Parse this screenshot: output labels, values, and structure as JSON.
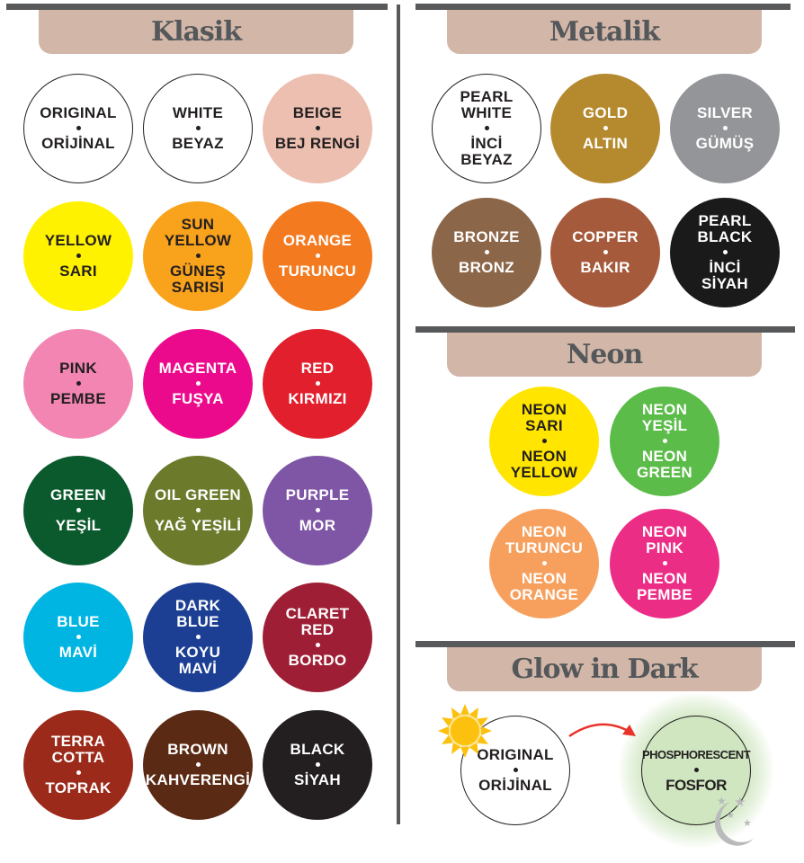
{
  "sections": {
    "klasik": {
      "title": "Klasik"
    },
    "metalik": {
      "title": "Metalik"
    },
    "neon": {
      "title": "Neon"
    },
    "glow": {
      "title": "Glow in Dark"
    }
  },
  "klasik_colors": [
    {
      "top": [
        "ORIGINAL"
      ],
      "bottom": [
        "ORİJİNAL"
      ],
      "fill": "#ffffff",
      "text": "#231f20",
      "outlined": true
    },
    {
      "top": [
        "WHITE"
      ],
      "bottom": [
        "BEYAZ"
      ],
      "fill": "#ffffff",
      "text": "#231f20",
      "outlined": true
    },
    {
      "top": [
        "BEIGE"
      ],
      "bottom": [
        "BEJ RENGİ"
      ],
      "fill": "#ecbfb0",
      "text": "#231f20"
    },
    {
      "top": [
        "YELLOW"
      ],
      "bottom": [
        "SARI"
      ],
      "fill": "#fff200",
      "text": "#231f20"
    },
    {
      "top": [
        "SUN",
        "YELLOW"
      ],
      "bottom": [
        "GÜNEŞ",
        "SARISI"
      ],
      "fill": "#f9a21b",
      "text": "#231f20"
    },
    {
      "top": [
        "ORANGE"
      ],
      "bottom": [
        "TURUNCU"
      ],
      "fill": "#f37a1f",
      "text": "#ffffff"
    },
    {
      "top": [
        "PINK"
      ],
      "bottom": [
        "PEMBE"
      ],
      "fill": "#f285b2",
      "text": "#231f20"
    },
    {
      "top": [
        "MAGENTA"
      ],
      "bottom": [
        "FUŞYA"
      ],
      "fill": "#ec0a8c",
      "text": "#ffffff"
    },
    {
      "top": [
        "RED"
      ],
      "bottom": [
        "KIRMIZI"
      ],
      "fill": "#e21f2d",
      "text": "#ffffff"
    },
    {
      "top": [
        "GREEN"
      ],
      "bottom": [
        "YEŞİL"
      ],
      "fill": "#0b5a2d",
      "text": "#ffffff"
    },
    {
      "top": [
        "OIL GREEN"
      ],
      "bottom": [
        "YAĞ YEŞİLİ"
      ],
      "fill": "#6b7a2b",
      "text": "#ffffff"
    },
    {
      "top": [
        "PURPLE"
      ],
      "bottom": [
        "MOR"
      ],
      "fill": "#7f56a5",
      "text": "#ffffff"
    },
    {
      "top": [
        "BLUE"
      ],
      "bottom": [
        "MAVİ"
      ],
      "fill": "#00b5e2",
      "text": "#ffffff"
    },
    {
      "top": [
        "DARK",
        "BLUE"
      ],
      "bottom": [
        "KOYU",
        "MAVİ"
      ],
      "fill": "#1c3f94",
      "text": "#ffffff"
    },
    {
      "top": [
        "CLARET",
        "RED"
      ],
      "bottom": [
        "BORDO"
      ],
      "fill": "#9e1f35",
      "text": "#ffffff"
    },
    {
      "top": [
        "TERRA",
        "COTTA"
      ],
      "bottom": [
        "TOPRAK"
      ],
      "fill": "#9b2a1a",
      "text": "#ffffff"
    },
    {
      "top": [
        "BROWN"
      ],
      "bottom": [
        "KAHVERENGİ"
      ],
      "fill": "#5a2a14",
      "text": "#ffffff"
    },
    {
      "top": [
        "BLACK"
      ],
      "bottom": [
        "SİYAH"
      ],
      "fill": "#231f20",
      "text": "#ffffff"
    }
  ],
  "metalik_colors": [
    {
      "top": [
        "PEARL",
        "WHITE"
      ],
      "bottom": [
        "İNCİ",
        "BEYAZ"
      ],
      "fill": "#ffffff",
      "text": "#231f20",
      "outlined": true
    },
    {
      "top": [
        "GOLD"
      ],
      "bottom": [
        "ALTIN"
      ],
      "fill": "#b5892e",
      "text": "#ffffff"
    },
    {
      "top": [
        "SILVER"
      ],
      "bottom": [
        "GÜMÜŞ"
      ],
      "fill": "#939598",
      "text": "#ffffff"
    },
    {
      "top": [
        "BRONZE"
      ],
      "bottom": [
        "BRONZ"
      ],
      "fill": "#8c6648",
      "text": "#ffffff"
    },
    {
      "top": [
        "COPPER"
      ],
      "bottom": [
        "BAKIR"
      ],
      "fill": "#a65a3c",
      "text": "#ffffff"
    },
    {
      "top": [
        "PEARL",
        "BLACK"
      ],
      "bottom": [
        "İNCİ",
        "SİYAH"
      ],
      "fill": "#1a1a1a",
      "text": "#ffffff"
    }
  ],
  "neon_colors": [
    {
      "top": [
        "NEON",
        "SARI"
      ],
      "bottom": [
        "NEON",
        "YELLOW"
      ],
      "fill": "#ffe500",
      "text": "#231f20"
    },
    {
      "top": [
        "NEON",
        "YEŞİL"
      ],
      "bottom": [
        "NEON",
        "GREEN"
      ],
      "fill": "#5cbc4a",
      "text": "#ffffff"
    },
    {
      "top": [
        "NEON",
        "TURUNCU"
      ],
      "bottom": [
        "NEON",
        "ORANGE"
      ],
      "fill": "#f7a05d",
      "text": "#ffffff"
    },
    {
      "top": [
        "NEON",
        "PINK"
      ],
      "bottom": [
        "NEON",
        "PEMBE"
      ],
      "fill": "#ec2d86",
      "text": "#ffffff"
    }
  ],
  "glow_colors": [
    {
      "top": [
        "ORIGINAL"
      ],
      "bottom": [
        "ORİJİNAL"
      ],
      "fill": "#ffffff",
      "text": "#231f20",
      "outlined": true,
      "icon": "sun-icon"
    },
    {
      "top": [
        "PHOSPHORESCENT"
      ],
      "bottom": [
        "FOSFOR"
      ],
      "fill": "#cfe6c0",
      "text": "#231f20",
      "outlined": true,
      "icon": "moon-stars-icon"
    }
  ],
  "accent_colors": {
    "arrow": "#e8322a",
    "sun": "#fcc10f",
    "moon": "#b9babc"
  }
}
